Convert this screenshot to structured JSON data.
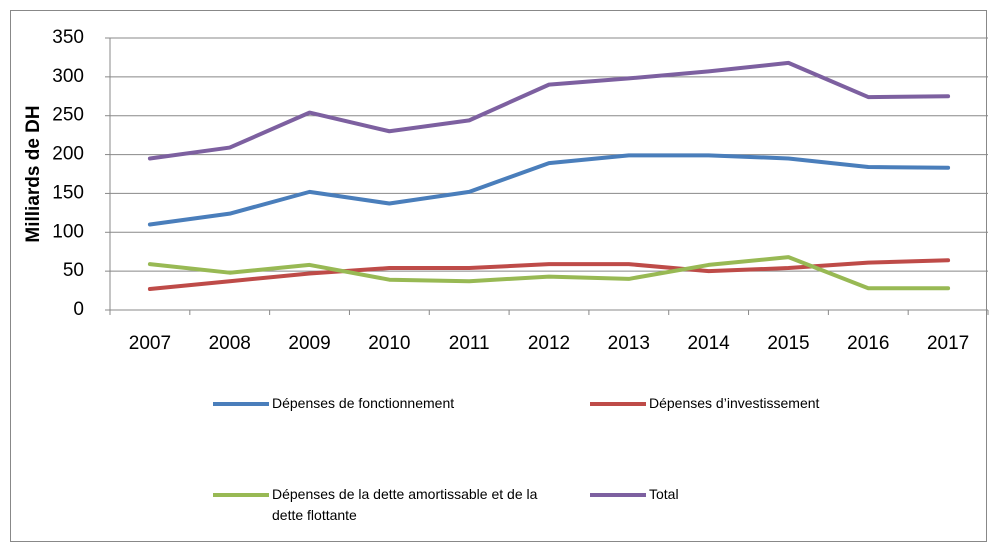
{
  "chart_data": {
    "type": "line",
    "y_label": "Milliards de DH",
    "categories": [
      "2007",
      "2008",
      "2009",
      "2010",
      "2011",
      "2012",
      "2013",
      "2014",
      "2015",
      "2016",
      "2017"
    ],
    "series": [
      {
        "name": "Dépenses de fonctionnement",
        "color": "#4a7ebb",
        "values": [
          110,
          124,
          152,
          137,
          152,
          189,
          199,
          199,
          195,
          184,
          183
        ]
      },
      {
        "name": "Dépenses d’investissement",
        "color": "#be4b48",
        "values": [
          27,
          37,
          47,
          54,
          54,
          59,
          59,
          50,
          54,
          61,
          64
        ]
      },
      {
        "name": "Dépenses de la dette amortissable et de la dette flottante",
        "color": "#98b954",
        "values": [
          59,
          48,
          58,
          39,
          37,
          43,
          40,
          58,
          68,
          28,
          28
        ]
      },
      {
        "name": "Total",
        "color": "#7d60a0",
        "values": [
          195,
          209,
          254,
          230,
          244,
          290,
          298,
          307,
          318,
          274,
          275
        ]
      }
    ],
    "ylim": [
      0,
      350
    ],
    "yticks": [
      0,
      50,
      100,
      150,
      200,
      250,
      300,
      350
    ],
    "grid": true
  }
}
